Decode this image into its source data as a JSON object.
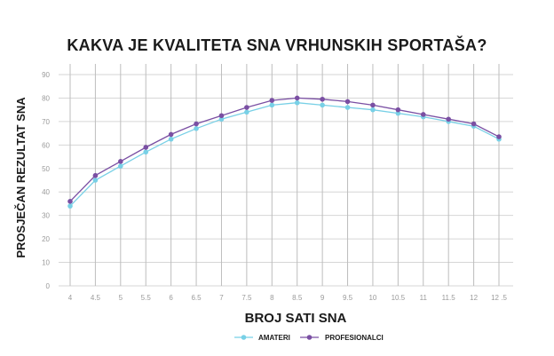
{
  "chart_data": {
    "type": "line",
    "title": "KAKVA JE KVALITETA SNA VRHUNSKIH SPORTAŠA?",
    "xlabel": "BROJ SATI SNA",
    "ylabel": "PROSJEČAN REZULTAT SNA",
    "x": [
      4,
      4.5,
      5,
      5.5,
      6,
      6.5,
      7,
      7.5,
      8,
      8.5,
      9,
      9.5,
      10,
      10.5,
      11,
      11.5,
      12,
      12.5
    ],
    "x_tick_labels": [
      "4",
      "4.5",
      "5",
      "5.5",
      "6",
      "6.5",
      "7",
      "7.5",
      "8",
      "8.5",
      "9",
      "9.5",
      "10",
      "10.5",
      "11",
      "11.5",
      "12",
      "12 .5"
    ],
    "xlim": [
      4,
      12.5
    ],
    "y_ticks": [
      0,
      10,
      20,
      30,
      40,
      50,
      60,
      70,
      80,
      90
    ],
    "ylim": [
      0,
      90
    ],
    "grid": true,
    "legend_position": "bottom",
    "series": [
      {
        "name": "AMATERI",
        "color": "#78d0e6",
        "values": [
          34,
          45,
          51,
          57,
          62.5,
          67,
          71,
          74,
          77,
          78,
          77,
          76,
          75,
          73.5,
          72,
          70,
          68,
          62.5
        ]
      },
      {
        "name": "PROFESIONALCI",
        "color": "#7a4fa3",
        "values": [
          36,
          47,
          53,
          59,
          64.5,
          69,
          72.5,
          76,
          79,
          80,
          79.5,
          78.5,
          77,
          75,
          73,
          71,
          69,
          63.5
        ]
      }
    ]
  }
}
